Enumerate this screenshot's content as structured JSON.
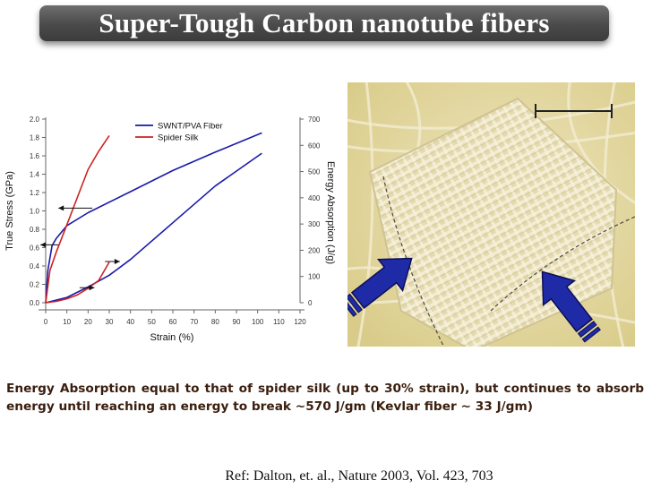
{
  "slide": {
    "title": "Super-Tough Carbon nanotube fibers",
    "caption": "Energy Absorption equal to that of spider silk (up to 30% strain), but continues to absorb energy until reaching an energy to break ~570 J/gm (Kevlar fiber ~ 33 J/gm)",
    "reference": "Ref: Dalton, et. al., Nature 2003, Vol. 423, 703"
  },
  "photo": {
    "subject": "woven carbon nanotube fiber textile",
    "colors": {
      "background": "#d9cc8a",
      "thread": "#f3ecd2",
      "arrow": "#1f2aa6"
    }
  },
  "chart_data": {
    "type": "line",
    "xlabel": "Strain (%)",
    "ylabel": "True Stress (GPa)",
    "y2label": "Energy Absorption (J/g)",
    "xlim": [
      0,
      120
    ],
    "ylim": [
      0,
      2.0
    ],
    "y2lim": [
      0,
      700
    ],
    "xticks": [
      "0",
      "10",
      "20",
      "30",
      "40",
      "50",
      "60",
      "70",
      "80",
      "90",
      "100",
      "110",
      "120"
    ],
    "yticks": [
      "0.0",
      "0.2",
      "0.4",
      "0.6",
      "0.8",
      "1.0",
      "1.2",
      "1.4",
      "1.6",
      "1.8",
      "2.0"
    ],
    "y2ticks": [
      "0",
      "100",
      "200",
      "300",
      "400",
      "500",
      "600",
      "700"
    ],
    "legend": {
      "position": "top-left"
    },
    "grid": false,
    "series": [
      {
        "name": "SWNT/PVA Fiber",
        "color": "#1a1aa8",
        "axis": "stress",
        "x": [
          0,
          1,
          3,
          5,
          10,
          20,
          40,
          60,
          80,
          102
        ],
        "y": [
          0.0,
          0.35,
          0.62,
          0.7,
          0.84,
          0.98,
          1.21,
          1.44,
          1.64,
          1.85
        ]
      },
      {
        "name": "Spider Silk",
        "color": "#cc2222",
        "axis": "stress",
        "x": [
          0,
          2,
          5,
          10,
          15,
          20,
          25,
          30
        ],
        "y": [
          0.0,
          0.35,
          0.55,
          0.85,
          1.15,
          1.45,
          1.65,
          1.82
        ]
      },
      {
        "name": "",
        "color": "#1a1aa8",
        "axis": "energy",
        "x": [
          0,
          10,
          20,
          30,
          40,
          60,
          80,
          102
        ],
        "y": [
          0,
          20,
          60,
          105,
          165,
          305,
          445,
          570
        ]
      },
      {
        "name": "",
        "color": "#cc2222",
        "axis": "energy",
        "x": [
          0,
          5,
          10,
          15,
          20,
          25,
          30
        ],
        "y": [
          0,
          5,
          15,
          30,
          55,
          85,
          155
        ]
      }
    ]
  }
}
